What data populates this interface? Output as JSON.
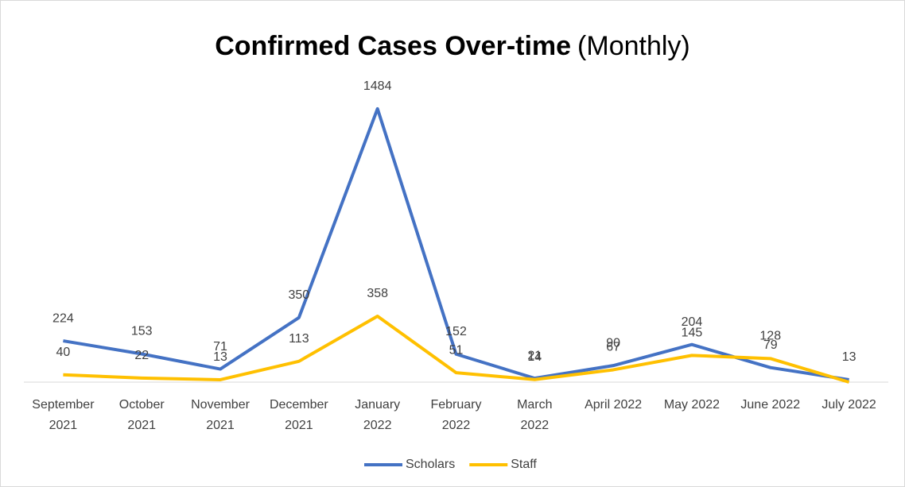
{
  "chart_data": {
    "type": "line",
    "title": "Confirmed Cases Over-time",
    "subtitle": "(Monthly)",
    "categories": [
      [
        "September",
        "2021"
      ],
      [
        "October",
        "2021"
      ],
      [
        "November",
        "2021"
      ],
      [
        "December",
        "2021"
      ],
      [
        "January",
        "2022"
      ],
      [
        "February",
        "2022"
      ],
      [
        "March",
        "2022"
      ],
      [
        "April 2022"
      ],
      [
        "May 2022"
      ],
      [
        "June 2022"
      ],
      [
        "July 2022"
      ]
    ],
    "series": [
      {
        "name": "Scholars",
        "color": "#4472c4",
        "values": [
          224,
          153,
          71,
          350,
          1484,
          152,
          21,
          90,
          204,
          79,
          13
        ]
      },
      {
        "name": "Staff",
        "color": "#ffc000",
        "values": [
          40,
          22,
          13,
          113,
          358,
          51,
          14,
          67,
          145,
          128,
          0
        ],
        "value_labels": [
          "40",
          "22",
          "13",
          "113",
          "358",
          "51",
          "14",
          "67",
          "145",
          "128",
          null
        ]
      }
    ],
    "ylim": [
      0,
      1600
    ],
    "legend": "bottom"
  }
}
